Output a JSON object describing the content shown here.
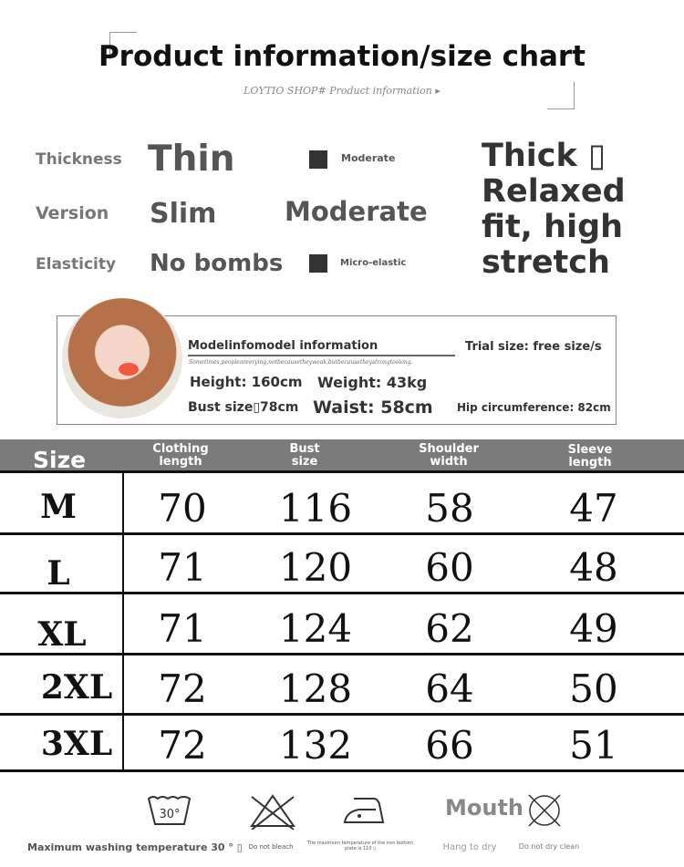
{
  "header": {
    "title": "Product information/size chart",
    "subtitle": "LOYTIO SHOP#  Product information ▸"
  },
  "attributes": {
    "thickness": {
      "label": "Thickness",
      "options": [
        "Thin",
        "Moderate",
        "Thick ▯"
      ]
    },
    "version": {
      "label": "Version",
      "options": [
        "Slim",
        "Moderate",
        "Relaxed fit, high stretch"
      ]
    },
    "elasticity": {
      "label": "Elasticity",
      "options": [
        "No bombs",
        "Micro-elastic"
      ]
    }
  },
  "model": {
    "heading": "Modelinfomodel information",
    "tagline": "Sometimes,peopleareerying,notbecausetheyweak,butbecausetheystrongtoolong.",
    "trial": "Trial size: free size/s",
    "height": "Height: 160cm",
    "weight": "Weight: 43kg",
    "bust": "Bust size▯78cm",
    "waist": "Waist: 58cm",
    "hip": "Hip circumference: 82cm"
  },
  "table": {
    "headers": [
      "Size",
      "Clothing length",
      "Bust size",
      "Shoulder width",
      "Sleeve length"
    ],
    "rows": [
      [
        "M",
        "70",
        "116",
        "58",
        "47"
      ],
      [
        "L",
        "71",
        "120",
        "60",
        "48"
      ],
      [
        "XL",
        "71",
        "124",
        "62",
        "49"
      ],
      [
        "2XL",
        "72",
        "128",
        "64",
        "50"
      ],
      [
        "3XL",
        "72",
        "132",
        "66",
        "51"
      ]
    ]
  },
  "care": {
    "wash_symbol": "30°",
    "wash": "Maximum washing temperature 30 ° ▯",
    "bleach": "Do not bleach",
    "iron": "The maximum temperature of the iron bottom plate is 110 ▯",
    "mouth": "Mouth",
    "dry": "Hang to dry",
    "dryclean": "Do not dry clean"
  },
  "colors": {
    "header_bar": "#7b7b7b",
    "lips": "#f2593b"
  }
}
